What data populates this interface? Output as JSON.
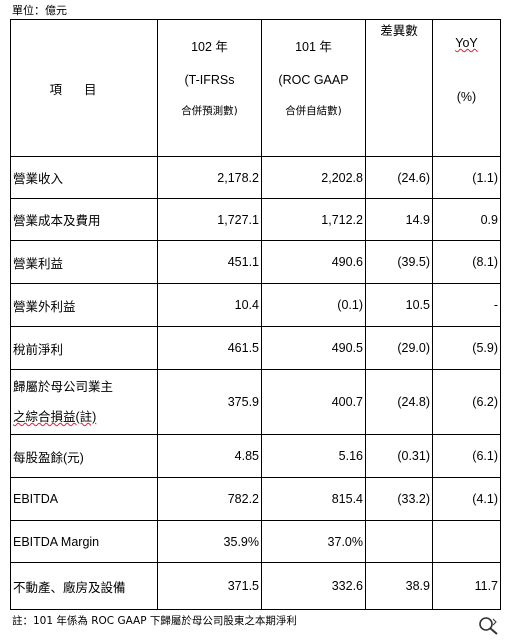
{
  "unit": "單位：億元",
  "header": {
    "item": "項目",
    "col1_line1": "102 年",
    "col1_line2": "(T-IFRSs",
    "col1_line3": "合併預測數)",
    "col2_line1": "101 年",
    "col2_line2": "(ROC GAAP",
    "col2_line3": "合併自結數)",
    "diff": "差異數",
    "yoy_line1": "YoY",
    "yoy_line2": "(%)"
  },
  "rows": [
    {
      "label": "營業收入",
      "v102": "2,178.2",
      "v101": "2,202.8",
      "diff": "(24.6)",
      "yoy": "(1.1)"
    },
    {
      "label": "營業成本及費用",
      "v102": "1,727.1",
      "v101": "1,712.2",
      "diff": "14.9",
      "yoy": "0.9"
    },
    {
      "label": "營業利益",
      "v102": "451.1",
      "v101": "490.6",
      "diff": "(39.5)",
      "yoy": "(8.1)"
    },
    {
      "label": "營業外利益",
      "v102": "10.4",
      "v101": "(0.1)",
      "diff": "10.5",
      "yoy": "-"
    },
    {
      "label": "稅前淨利",
      "v102": "461.5",
      "v101": "490.5",
      "diff": "(29.0)",
      "yoy": "(5.9)"
    },
    {
      "label_line1": "歸屬於母公司業主",
      "label_line2": "之綜合損益(註)",
      "v102": "375.9",
      "v101": "400.7",
      "diff": "(24.8)",
      "yoy": "(6.2)"
    },
    {
      "label": "每股盈餘(元)",
      "v102": "4.85",
      "v101": "5.16",
      "diff": "(0.31)",
      "yoy": "(6.1)"
    },
    {
      "label": "EBITDA",
      "v102": "782.2",
      "v101": "815.4",
      "diff": "(33.2)",
      "yoy": "(4.1)"
    },
    {
      "label": "EBITDA Margin",
      "v102": "35.9%",
      "v101": "37.0%",
      "diff": "",
      "yoy": ""
    },
    {
      "label": "不動產、廠房及設備",
      "v102": "371.5",
      "v101": "332.6",
      "diff": "38.9",
      "yoy": "11.7"
    }
  ],
  "footnote": "註：101 年係為 ROC GAAP 下歸屬於母公司股東之本期淨利",
  "icons": {
    "zoom": "zoom-icon"
  }
}
